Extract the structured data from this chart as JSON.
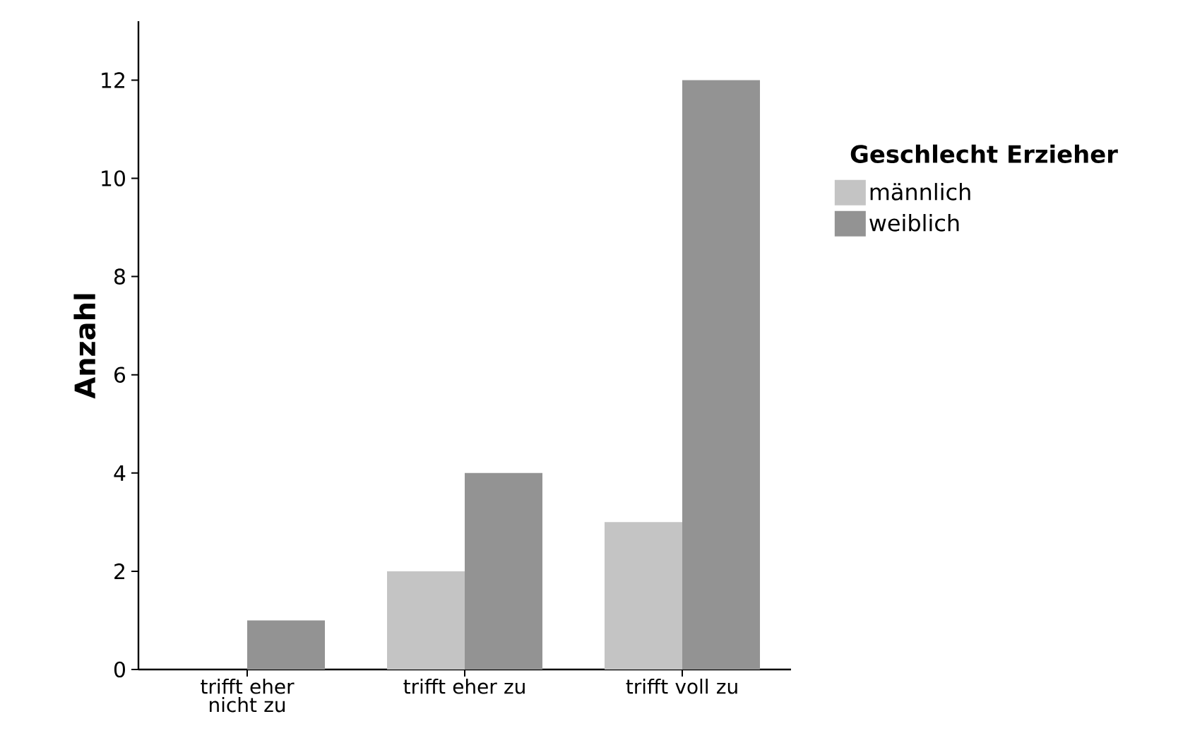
{
  "chart_data": {
    "type": "bar",
    "ylabel": "Anzahl",
    "legend_title": "Geschlecht Erzieher",
    "categories": [
      "trifft eher nicht zu",
      "trifft eher zu",
      "trifft voll zu"
    ],
    "series": [
      {
        "name": "männlich",
        "color": "#c4c4c4",
        "values": [
          0,
          2,
          3
        ]
      },
      {
        "name": "weiblich",
        "color": "#939393",
        "values": [
          1,
          4,
          12
        ]
      }
    ],
    "ylim": [
      0,
      13.2
    ],
    "yticks": [
      0,
      2,
      4,
      6,
      8,
      10,
      12
    ],
    "grid": false,
    "legend": "right"
  }
}
